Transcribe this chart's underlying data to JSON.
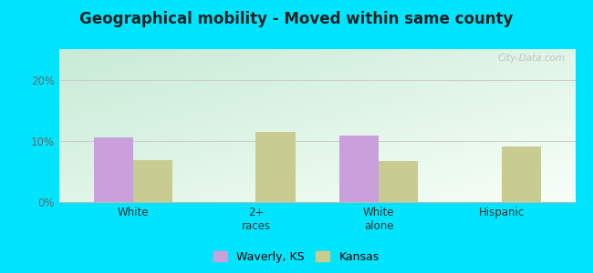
{
  "title": "Geographical mobility - Moved within same county",
  "categories": [
    "White",
    "2+\nraces",
    "White\nalone",
    "Hispanic"
  ],
  "waverly_values": [
    10.5,
    0,
    10.8,
    0
  ],
  "kansas_values": [
    6.8,
    11.4,
    6.7,
    9.1
  ],
  "waverly_color": "#c9a0dc",
  "kansas_color": "#c8cc90",
  "ylim": [
    0,
    25
  ],
  "yticks": [
    0,
    10,
    20
  ],
  "ytick_labels": [
    "0%",
    "10%",
    "20%"
  ],
  "bg_top_left": "#c8ecd8",
  "bg_bottom_right": "#f5fff5",
  "outer_bg": "#00e5ff",
  "legend_waverly": "Waverly, KS",
  "legend_kansas": "Kansas",
  "watermark": "City-Data.com",
  "bar_width": 0.32,
  "title_fontsize": 12,
  "title_color": "#222222"
}
